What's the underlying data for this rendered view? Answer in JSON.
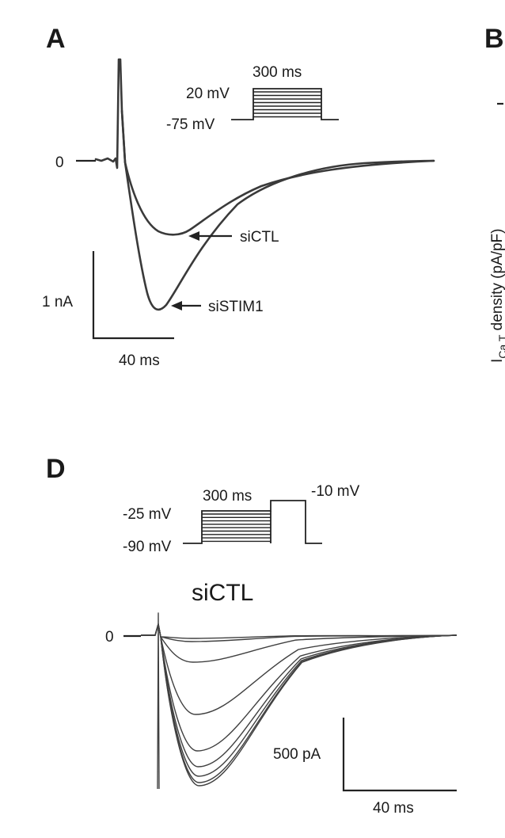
{
  "panel_a": {
    "letter": "A",
    "protocol": {
      "duration": "300 ms",
      "test": "20 mV",
      "hold": "-75 mV"
    },
    "zero": "0",
    "traces": {
      "ctl": "siCTL",
      "stim": "siSTIM1"
    },
    "scale": {
      "y": "1 nA",
      "x": "40 ms"
    }
  },
  "panel_b": {
    "letter": "B",
    "ylabel_main": "I",
    "ylabel_sub": "Ca T",
    "ylabel_rest": " density (pA/pF)"
  },
  "panel_d": {
    "letter": "D",
    "protocol": {
      "duration": "300 ms",
      "step": "-10 mV",
      "max": "-25 mV",
      "hold": "-90 mV"
    },
    "condition": "siCTL",
    "zero": "0",
    "scale": {
      "y": "500 pA",
      "x": "40 ms"
    }
  }
}
